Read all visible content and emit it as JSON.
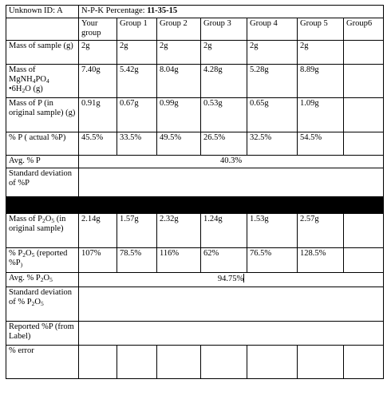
{
  "header": {
    "unknown_id": "Unknown ID: A",
    "npk_prefix": "N-P-K Percentage: ",
    "npk_value": "11-35-15"
  },
  "columns": [
    "Your group",
    "Group 1",
    "Group 2",
    "Group 3",
    "Group 4",
    "Group 5",
    "Group6"
  ],
  "rows": {
    "mass_sample": {
      "label": "Mass of sample (g)",
      "values": [
        "2g",
        "2g",
        "2g",
        "2g",
        "2g",
        "2g",
        ""
      ]
    },
    "mass_mgnh4po4": {
      "label_a": "Mass of MgNH",
      "sub_a": "4",
      "label_b": "PO",
      "sub_b": "4",
      "label_c": "•6H",
      "sub_c": "2",
      "label_d": "O (g)",
      "values": [
        "7.40g",
        "5.42g",
        "8.04g",
        "4.28g",
        "5.28g",
        "8.89g",
        ""
      ]
    },
    "mass_p": {
      "label": "Mass of P (in original sample) (g)",
      "values": [
        "0.91g",
        "0.67g",
        "0.99g",
        "0.53g",
        "0.65g",
        "1.09g",
        ""
      ]
    },
    "pct_p": {
      "label": "% P ( actual %P)",
      "values": [
        "45.5%",
        "33.5%",
        "49.5%",
        "26.5%",
        "32.5%",
        "54.5%",
        ""
      ]
    },
    "avg_p": {
      "label": "Avg. % P",
      "value": "40.3%"
    },
    "std_p": {
      "label": "Standard deviation of %P",
      "value": ""
    },
    "mass_p2o5": {
      "label_a": "Mass of P",
      "sub_a": "2",
      "label_b": "O",
      "sub_b": "5",
      "label_c": " (in original sample)",
      "values": [
        "2.14g",
        "1.57g",
        "2.32g",
        "1.24g",
        "1.53g",
        "2.57g",
        ""
      ]
    },
    "pct_p2o5": {
      "label_a": "% P",
      "sub_a": "2",
      "label_b": "O",
      "sub_b": "5",
      "label_c": " (reported %P",
      "sub_c": ")",
      "values": [
        "107%",
        "78.5%",
        "116%",
        "62%",
        "76.5%",
        "128.5%",
        ""
      ]
    },
    "avg_p2o5": {
      "label_a": "Avg. % P",
      "sub_a": "2",
      "label_b": "O",
      "sub_b": "5",
      "value": "94.75%"
    },
    "std_p2o5": {
      "label_a": "Standard deviation of % P",
      "sub_a": "2",
      "label_b": "O",
      "sub_b": "5",
      "value": ""
    },
    "reported_p": {
      "label": "Reported %P (from Label)",
      "value": ""
    },
    "pct_error": {
      "label": "% error",
      "values": [
        "",
        "",
        "",
        "",
        "",
        "",
        ""
      ]
    }
  }
}
